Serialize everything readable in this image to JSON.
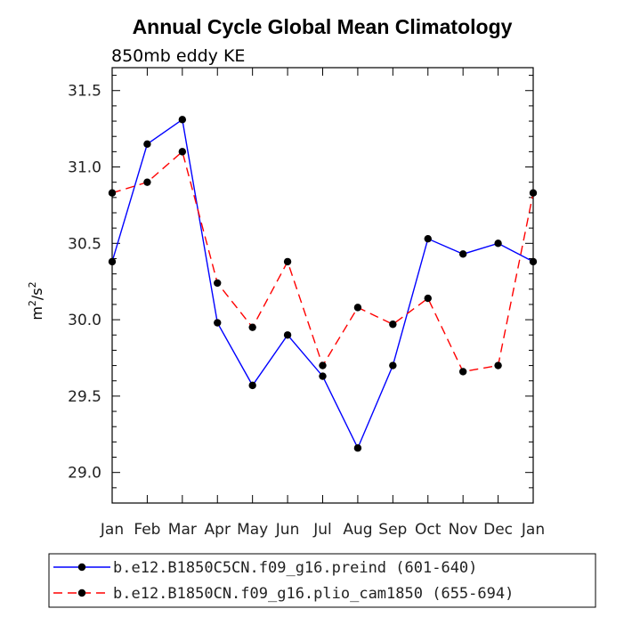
{
  "chart_data": {
    "type": "line",
    "title": "Annual Cycle Global Mean Climatology",
    "subtitle": "850mb eddy KE",
    "ylabel_base": "m",
    "ylabel_mid": "/s",
    "ylabel_sup": "2",
    "xlabel": "",
    "categories": [
      "Jan",
      "Feb",
      "Mar",
      "Apr",
      "May",
      "Jun",
      "Jul",
      "Aug",
      "Sep",
      "Oct",
      "Nov",
      "Dec",
      "Jan"
    ],
    "ylim": [
      28.8,
      31.65
    ],
    "yticks": [
      29.0,
      29.5,
      30.0,
      30.5,
      31.0,
      31.5
    ],
    "ytick_labels": [
      "29.0",
      "29.5",
      "30.0",
      "30.5",
      "31.0",
      "31.5"
    ],
    "grid": false,
    "legend_position": "bottom",
    "series": [
      {
        "name": "b.e12.B1850C5CN.f09_g16.preind (601-640)",
        "color": "#0000ff",
        "dash": "solid",
        "values": [
          30.38,
          31.15,
          31.31,
          29.98,
          29.57,
          29.9,
          29.63,
          29.16,
          29.7,
          30.53,
          30.43,
          30.5,
          30.38
        ]
      },
      {
        "name": "b.e12.B1850CN.f09_g16.plio_cam1850 (655-694)",
        "color": "#ff0000",
        "dash": "dashed",
        "values": [
          30.83,
          30.9,
          31.1,
          30.24,
          29.95,
          30.38,
          29.7,
          30.08,
          29.97,
          30.14,
          29.66,
          29.7,
          30.83
        ]
      }
    ]
  }
}
